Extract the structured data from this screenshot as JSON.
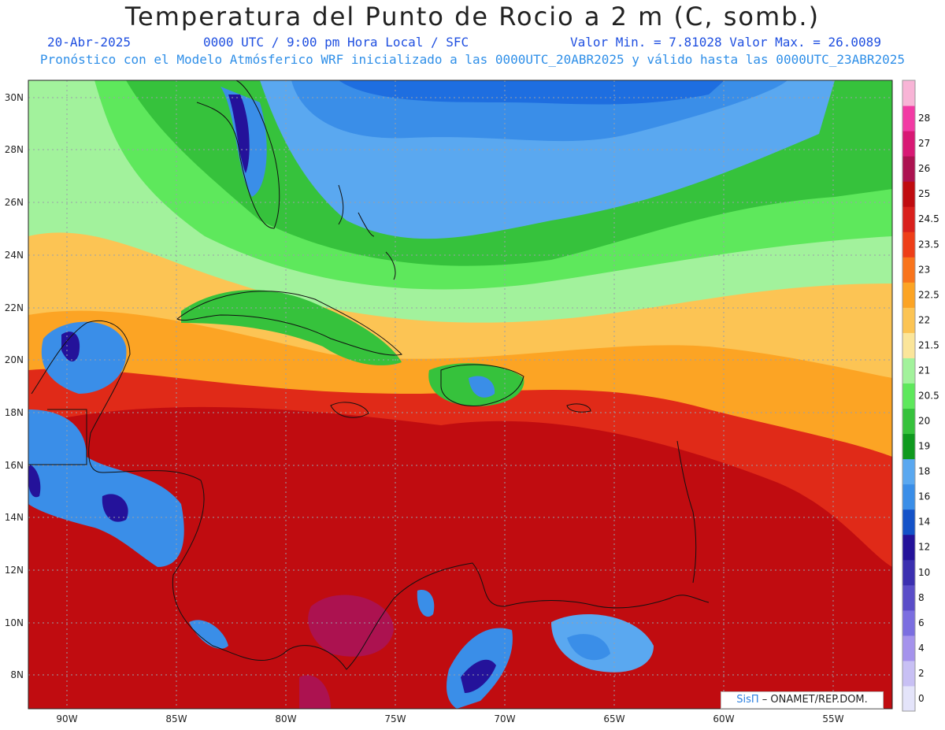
{
  "header": {
    "title": "Temperatura del Punto de Rocio a 2 m (C, somb.)",
    "date": "20-Abr-2025",
    "time": "0000 UTC / 9:00 pm Hora Local / SFC",
    "minmax": "Valor Min. = 7.81028  Valor Max. = 26.0089",
    "model_line": "Pronóstico con el Modelo Atmósferico WRF inicializado a las 0000UTC_20ABR2025 y válido hasta las  0000UTC_23ABR2025"
  },
  "axes": {
    "lat_labels": [
      "30N",
      "28N",
      "26N",
      "24N",
      "22N",
      "20N",
      "18N",
      "16N",
      "14N",
      "12N",
      "10N",
      "8N"
    ],
    "lon_labels": [
      "90W",
      "85W",
      "80W",
      "75W",
      "70W",
      "65W",
      "60W",
      "55W"
    ]
  },
  "colorbar": {
    "labels": [
      "0",
      "2",
      "4",
      "6",
      "8",
      "10",
      "12",
      "14",
      "16",
      "18",
      "19",
      "20",
      "20.5",
      "21",
      "21.5",
      "22",
      "22.5",
      "23",
      "23.5",
      "24.5",
      "25",
      "26",
      "27",
      "28"
    ],
    "colors": [
      "#e4e4fa",
      "#c8c0f4",
      "#a593ec",
      "#7b6ee0",
      "#5a4dc8",
      "#3b2fb0",
      "#24129a",
      "#1452c8",
      "#3a8ee8",
      "#5aa8f0",
      "#0f9a1e",
      "#36c23c",
      "#5ee85c",
      "#a2f29c",
      "#fbe59a",
      "#fcc454",
      "#fca424",
      "#f9741c",
      "#ee3e18",
      "#d9201c",
      "#c00c10",
      "#ac1250",
      "#d81874",
      "#f23aa4",
      "#f8b4d6"
    ],
    "color_roles": [
      "land",
      "ocean",
      "warm",
      "hot"
    ]
  },
  "palette": {
    "land": "#0f9a1e",
    "ocean": "#1e6ee0",
    "warm": "#fca424",
    "hot": "#c00c10"
  },
  "credit": {
    "logo": "SisΠ",
    "text": "– ONAMET/REP.DOM."
  }
}
